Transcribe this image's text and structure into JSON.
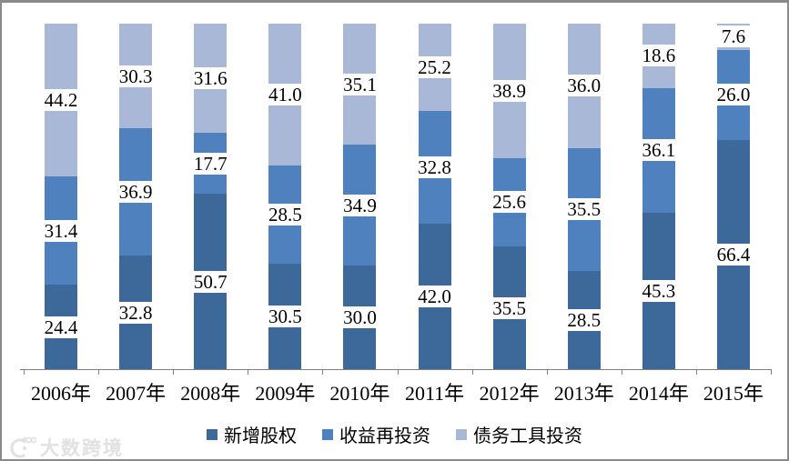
{
  "chart_data": {
    "type": "bar",
    "stacked": true,
    "percent_stacked": true,
    "categories": [
      "2006年",
      "2007年",
      "2008年",
      "2009年",
      "2010年",
      "2011年",
      "2012年",
      "2013年",
      "2014年",
      "2015年"
    ],
    "series": [
      {
        "name": "新增股权",
        "color": "#3C699A",
        "values": [
          24.4,
          32.8,
          50.7,
          30.5,
          30.0,
          42.0,
          35.5,
          28.5,
          45.3,
          66.4
        ]
      },
      {
        "name": "收益再投资",
        "color": "#4E81BD",
        "values": [
          31.4,
          36.9,
          17.7,
          28.5,
          34.9,
          32.8,
          25.6,
          35.5,
          36.1,
          26.0
        ]
      },
      {
        "name": "债务工具投资",
        "color": "#A9B8D6",
        "values": [
          44.2,
          30.3,
          31.6,
          41.0,
          35.1,
          25.2,
          38.9,
          36.0,
          18.6,
          7.6
        ]
      }
    ],
    "title": "",
    "xlabel": "",
    "ylabel": "",
    "ylim": [
      0,
      100
    ],
    "grid": false,
    "legend_position": "bottom",
    "data_labels": "center, white background, one decimal",
    "axis_color": "#808080",
    "label_color": "#000000"
  },
  "watermark": {
    "text": "大数跨境"
  }
}
